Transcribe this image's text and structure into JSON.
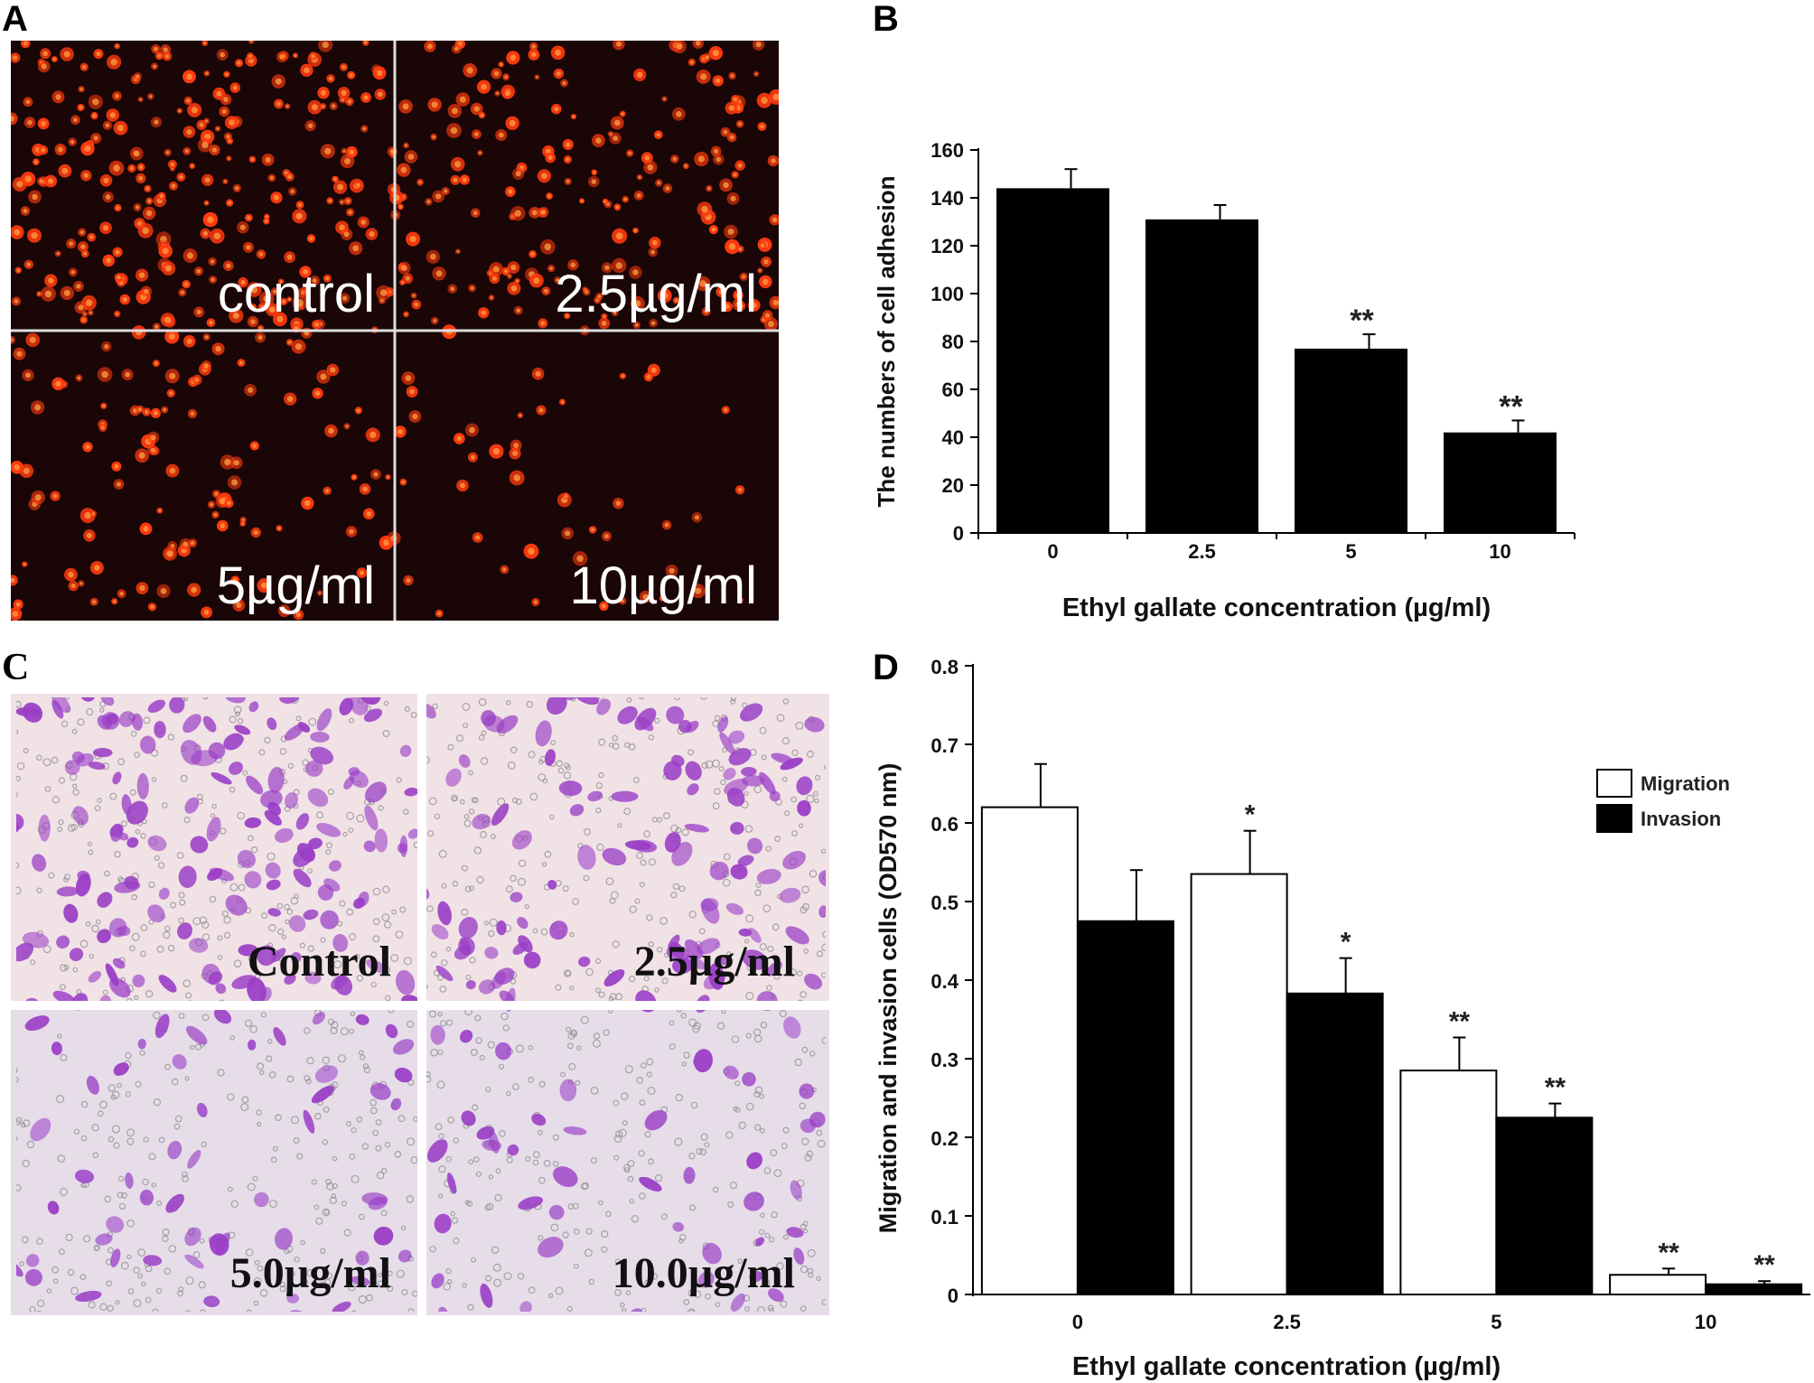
{
  "panels": {
    "A": {
      "label": "A",
      "images": [
        {
          "caption": "control",
          "cell_count": 260
        },
        {
          "caption": "2.5µg/ml",
          "cell_count": 200
        },
        {
          "caption": "5µg/ml",
          "cell_count": 120
        },
        {
          "caption": "10µg/ml",
          "cell_count": 45
        }
      ],
      "colors": {
        "background": "#1a0606",
        "cell": "#ff3a10",
        "cell_core": "#ffa040",
        "divider": "#dddddd"
      }
    },
    "C": {
      "label": "C",
      "images": [
        {
          "caption": "Control",
          "cell_count": 150
        },
        {
          "caption": "2.5µg/ml",
          "cell_count": 110
        },
        {
          "caption": "5.0µg/ml",
          "cell_count": 55
        },
        {
          "caption": "10.0µg/ml",
          "cell_count": 45
        }
      ],
      "colors": {
        "background": "#f1e2e6",
        "background_alt": "#e6dde9",
        "cell": "#9a3ec6",
        "pore": "#8d8d8d"
      }
    }
  },
  "chart_data": [
    {
      "panel": "B",
      "type": "bar",
      "label": "B",
      "categories": [
        "0",
        "2.5",
        "5",
        "10"
      ],
      "values": [
        144,
        131,
        77,
        42
      ],
      "errors": [
        8,
        6,
        6,
        5
      ],
      "significance": [
        "",
        "",
        "**",
        "**"
      ],
      "xlabel": "Ethyl gallate concentration (µg/ml)",
      "ylabel": "The numbers of cell adhesion",
      "ylim": [
        0,
        160
      ],
      "yticks": [
        "0",
        "20",
        "40",
        "60",
        "80",
        "100",
        "120",
        "140",
        "160"
      ],
      "grid": false,
      "colors": {
        "bar": "#000000"
      }
    },
    {
      "panel": "D",
      "type": "bar",
      "label": "D",
      "categories": [
        "0",
        "2.5",
        "5",
        "10"
      ],
      "series": [
        {
          "name": "Migration",
          "values": [
            0.62,
            0.535,
            0.285,
            0.025
          ],
          "errors": [
            0.055,
            0.055,
            0.042,
            0.008
          ],
          "significance": [
            "",
            "*",
            "**",
            "**"
          ],
          "color": "#ffffff"
        },
        {
          "name": "Invasion",
          "values": [
            0.475,
            0.383,
            0.225,
            0.013
          ],
          "errors": [
            0.065,
            0.045,
            0.018,
            0.004
          ],
          "significance": [
            "",
            "*",
            "**",
            "**"
          ],
          "color": "#000000"
        }
      ],
      "xlabel": "Ethyl gallate concentration (µg/ml)",
      "ylabel": "Migration and invasion cells (OD570 nm)",
      "ylim": [
        0,
        0.8
      ],
      "yticks": [
        "0",
        "0.1",
        "0.2",
        "0.3",
        "0.4",
        "0.5",
        "0.6",
        "0.7",
        "0.8"
      ],
      "grid": false,
      "legend_position": "top-right"
    }
  ]
}
